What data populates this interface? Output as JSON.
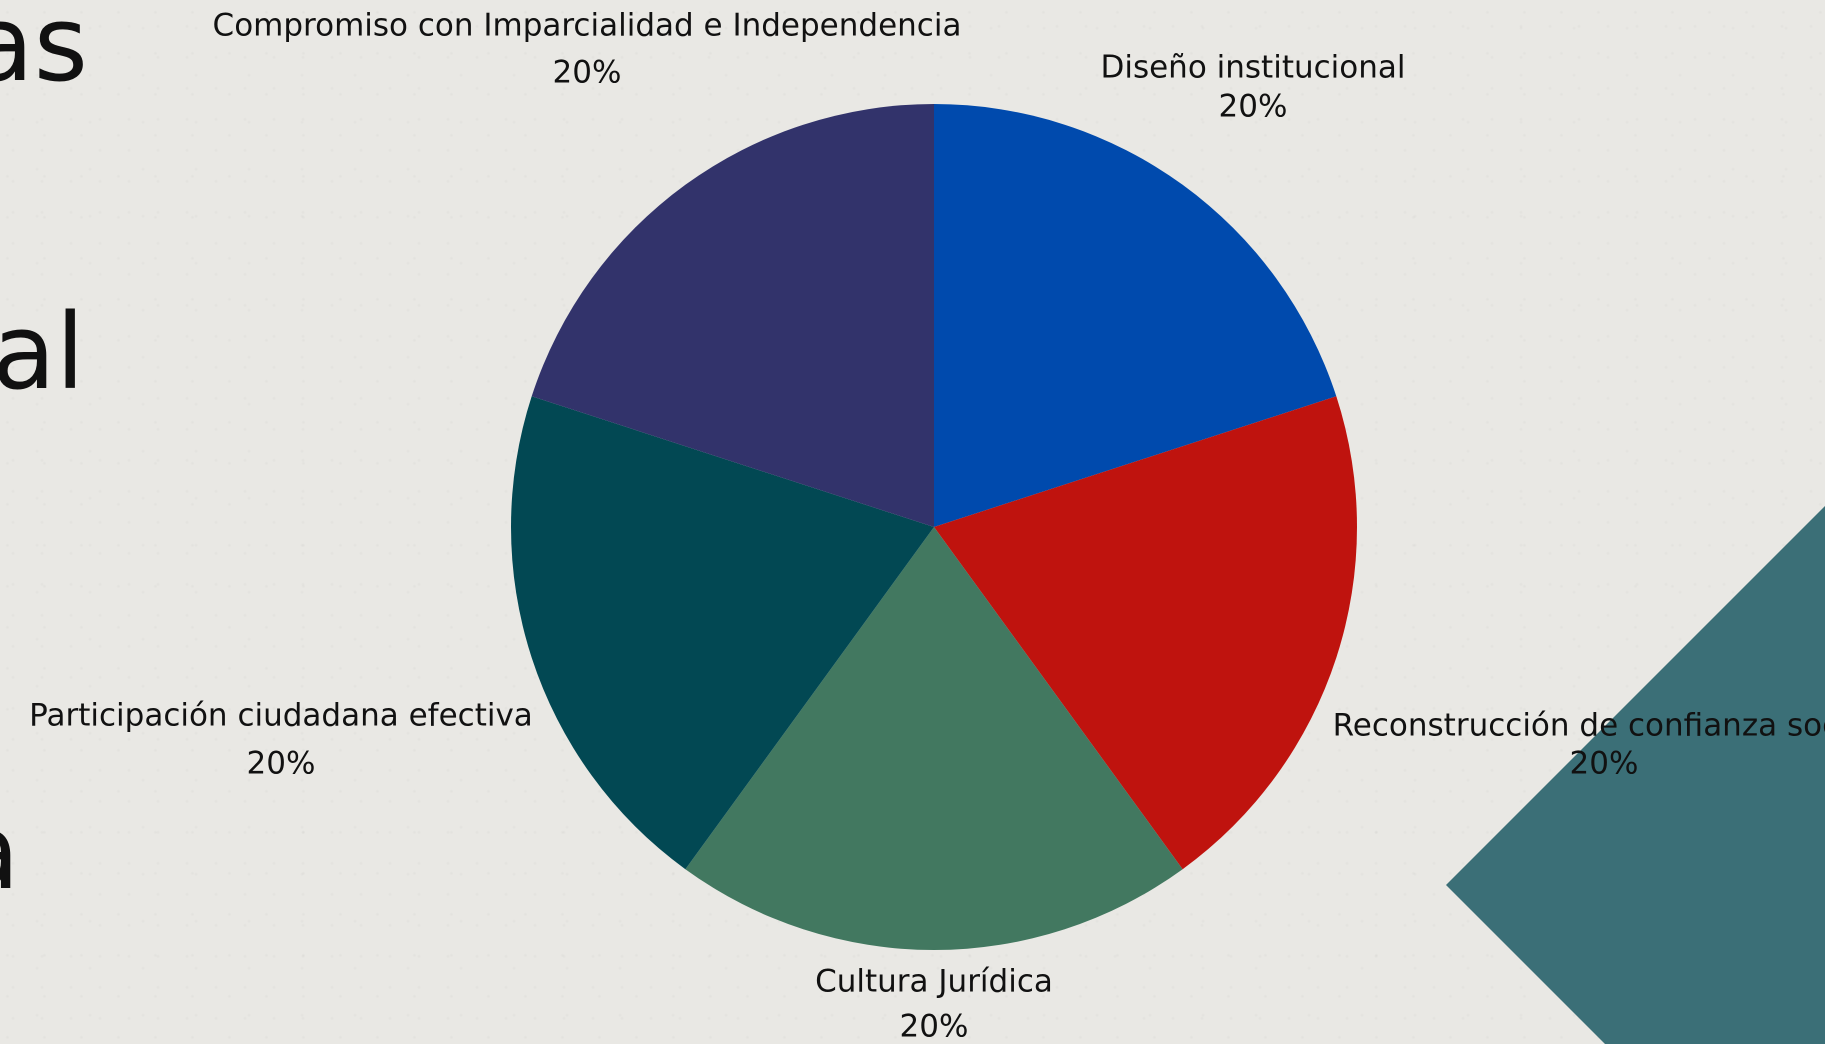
{
  "slide": {
    "text_fragments": [
      "as",
      "al",
      "a"
    ]
  },
  "colors": {
    "background": "#e9e8e4",
    "decoration": "#3b6f77",
    "label": "#111111"
  },
  "chart_data": {
    "type": "pie",
    "title": "",
    "start_angle_deg": 0,
    "direction": "clockwise",
    "slices": [
      {
        "label": "Diseño institucional",
        "value": 20,
        "value_label": "20%",
        "color": "#004aad"
      },
      {
        "label": "Reconstrucción de confianza social",
        "value": 20,
        "value_label": "20%",
        "color": "#bf130e"
      },
      {
        "label": "Cultura Jurídica",
        "value": 20,
        "value_label": "20%",
        "color": "#427860"
      },
      {
        "label": "Participación ciudadana efectiva",
        "value": 20,
        "value_label": "20%",
        "color": "#024853"
      },
      {
        "label": "Compromiso con Imparcialidad e Independencia",
        "value": 20,
        "value_label": "20%",
        "color": "#32336b"
      }
    ]
  }
}
